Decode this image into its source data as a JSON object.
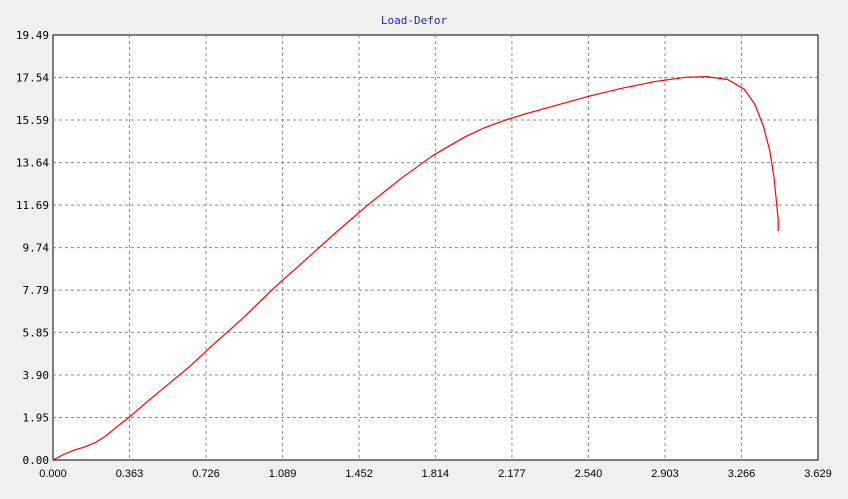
{
  "chart_data": {
    "type": "line",
    "title": "Load-Defor",
    "xlabel": "",
    "ylabel": "",
    "xlim": [
      0.0,
      3.629
    ],
    "ylim": [
      0.0,
      19.49
    ],
    "x_ticks": [
      "0.000",
      "0.363",
      "0.726",
      "1.089",
      "1.452",
      "1.814",
      "2.177",
      "2.540",
      "2.903",
      "3.266",
      "3.629"
    ],
    "y_ticks": [
      "0.00",
      "1.95",
      "3.90",
      "5.85",
      "7.79",
      "9.74",
      "11.69",
      "13.64",
      "15.59",
      "17.54",
      "19.49"
    ],
    "grid": true,
    "series": [
      {
        "color": "#ff0000",
        "x": [
          0.0,
          0.05,
          0.1,
          0.15,
          0.2,
          0.25,
          0.3,
          0.36,
          0.45,
          0.55,
          0.65,
          0.75,
          0.9,
          1.05,
          1.2,
          1.35,
          1.5,
          1.65,
          1.8,
          1.95,
          2.05,
          2.15,
          2.25,
          2.4,
          2.55,
          2.7,
          2.85,
          3.0,
          3.1,
          3.2,
          3.28,
          3.33,
          3.37,
          3.4,
          3.42,
          3.43,
          3.44,
          3.44
        ],
        "y": [
          0.0,
          0.25,
          0.45,
          0.6,
          0.8,
          1.1,
          1.5,
          1.95,
          2.7,
          3.5,
          4.3,
          5.2,
          6.5,
          7.9,
          9.2,
          10.5,
          11.75,
          12.9,
          13.95,
          14.8,
          15.25,
          15.6,
          15.9,
          16.3,
          16.7,
          17.05,
          17.35,
          17.55,
          17.58,
          17.45,
          17.0,
          16.3,
          15.3,
          14.2,
          13.0,
          12.0,
          11.0,
          10.5
        ]
      }
    ]
  }
}
